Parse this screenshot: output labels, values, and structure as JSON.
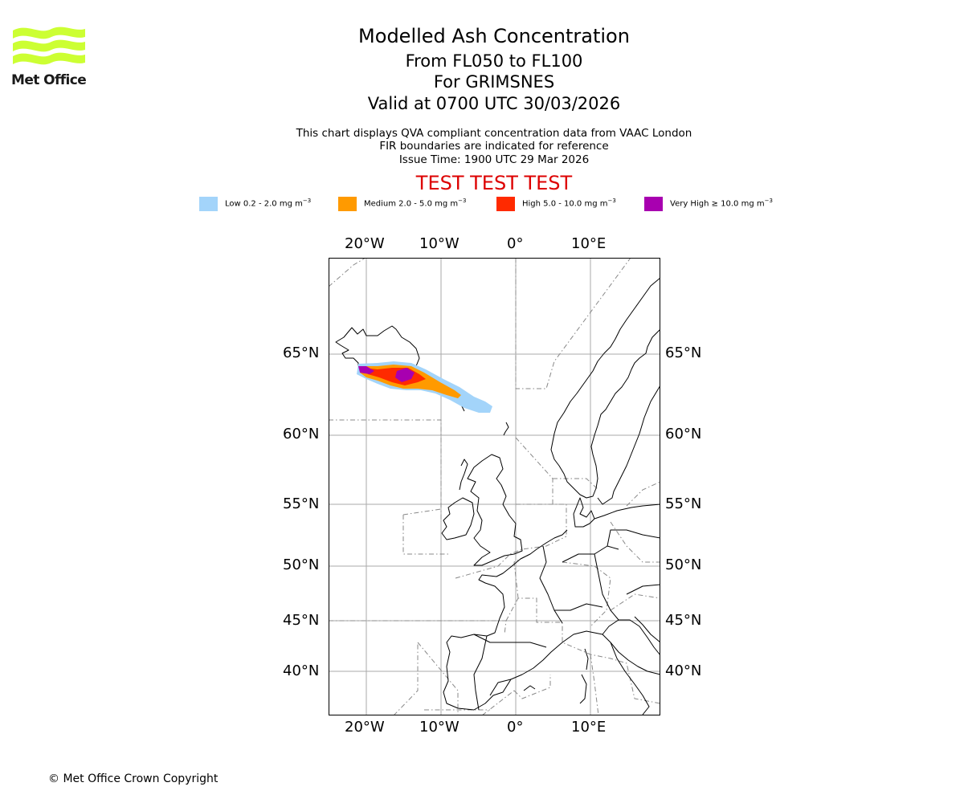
{
  "header": {
    "logo_text": "Met Office",
    "title": "Modelled Ash Concentration",
    "levels": "From FL050 to FL100",
    "volcano": "For GRIMSNES",
    "valid": "Valid at 0700 UTC 30/03/2026",
    "note1": "This chart displays QVA compliant concentration data from VAAC London",
    "note2": "FIR boundaries are indicated for reference",
    "issue": "Issue Time: 1900 UTC 29 Mar 2026",
    "test_banner": "TEST TEST TEST"
  },
  "legend": [
    {
      "label": "Low 0.2 - 2.0 mg m",
      "color": "#a3d4fa"
    },
    {
      "label": "Medium 2.0 - 5.0 mg m",
      "color": "#ff9a00"
    },
    {
      "label": "High 5.0 - 10.0 mg m",
      "color": "#ff2a00"
    },
    {
      "label": "Very High ≥ 10.0 mg m",
      "color": "#a800b0"
    }
  ],
  "legend_unit_exp": "−3",
  "map": {
    "lon_labels": [
      "20°W",
      "10°W",
      "0°",
      "10°E"
    ],
    "lat_labels": [
      "65°N",
      "60°N",
      "55°N",
      "50°N",
      "45°N",
      "40°N"
    ],
    "grid_color": "#aaaaaa",
    "fir_color": "#888888",
    "coast_color": "#000000"
  },
  "footer": {
    "copyright": "© Met Office Crown Copyright"
  }
}
